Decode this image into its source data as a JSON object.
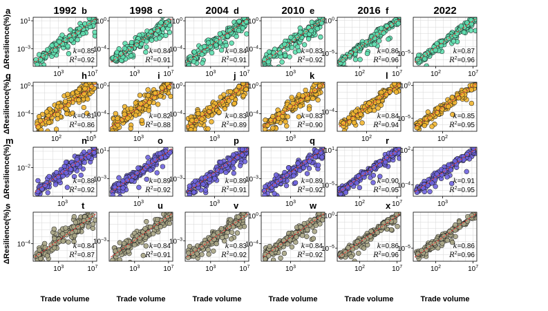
{
  "chart_data": {
    "type": "scatter",
    "x_axis_label": "Trade volume",
    "y_axis_label": "ΔResilience(%)",
    "x_scale": "log",
    "y_scale": "log",
    "fit_line_color": "#e0403a",
    "column_years": [
      "1992",
      "1998",
      "2004",
      "2010",
      "2016",
      "2022"
    ],
    "row_colors": [
      "#5ee0b0",
      "#f2b630",
      "#6f64e0",
      "#a8a585"
    ],
    "panels": [
      {
        "label": "a",
        "year": "1992",
        "k": "0.85",
        "r2": "0.92",
        "x_ticks": [
          "10^3",
          "10^7"
        ],
        "y_ticks": [
          "10^1",
          "10^-3"
        ],
        "log_xlim": [
          0,
          7.5
        ],
        "log_ylim": [
          -5.5,
          1.5
        ]
      },
      {
        "label": "b",
        "year": "1998",
        "k": "0.84",
        "r2": "0.91",
        "x_ticks": [
          "10^3",
          "10^7"
        ],
        "y_ticks": [
          "10^0",
          "10^-4"
        ],
        "log_xlim": [
          0,
          7.5
        ],
        "log_ylim": [
          -6.5,
          0.5
        ]
      },
      {
        "label": "c",
        "year": "2004",
        "k": "0.84",
        "r2": "0.91",
        "x_ticks": [
          "10^3",
          "10^7"
        ],
        "y_ticks": [
          "10^0",
          "10^-4"
        ],
        "log_xlim": [
          0,
          7.5
        ],
        "log_ylim": [
          -6.5,
          0.5
        ]
      },
      {
        "label": "d",
        "year": "2010",
        "k": "0.83",
        "r2": "0.92",
        "x_ticks": [
          "10^3"
        ],
        "y_ticks": [
          "10^0",
          "10^-4"
        ],
        "log_xlim": [
          0,
          6.5
        ],
        "log_ylim": [
          -6.5,
          0.5
        ]
      },
      {
        "label": "e",
        "year": "2016",
        "k": "0.86",
        "r2": "0.96",
        "x_ticks": [
          "10^2",
          "10^7"
        ],
        "y_ticks": [
          "10^0",
          "10^-5"
        ],
        "log_xlim": [
          -1,
          7.5
        ],
        "log_ylim": [
          -7,
          0.5
        ]
      },
      {
        "label": "f",
        "year": "2022",
        "k": "0.87",
        "r2": "0.96",
        "x_ticks": [
          "10^2",
          "10^7"
        ],
        "y_ticks": [
          "10^-5"
        ],
        "log_xlim": [
          -1,
          7.5
        ],
        "log_ylim": [
          -7,
          0.5
        ]
      },
      {
        "label": "g",
        "year": "1992",
        "k": "0.81",
        "r2": "0.86",
        "x_ticks": [
          "10^2",
          "10^5"
        ],
        "y_ticks": [
          "10^0",
          "10^-4"
        ],
        "log_xlim": [
          0,
          5.5
        ],
        "log_ylim": [
          -6.5,
          0.5
        ]
      },
      {
        "label": "h",
        "year": "1998",
        "k": "0.82",
        "r2": "0.88",
        "x_ticks": [
          "10^3"
        ],
        "y_ticks": [
          "10^0",
          "10^-4"
        ],
        "log_xlim": [
          0,
          6.5
        ],
        "log_ylim": [
          -6.5,
          0.5
        ]
      },
      {
        "label": "i",
        "year": "2004",
        "k": "0.83",
        "r2": "0.89",
        "x_ticks": [
          "10^3"
        ],
        "y_ticks": [
          "10^0",
          "10^-4"
        ],
        "log_xlim": [
          0,
          6.5
        ],
        "log_ylim": [
          -6.5,
          0.5
        ]
      },
      {
        "label": "j",
        "year": "2010",
        "k": "0.83",
        "r2": "0.90",
        "x_ticks": [
          "10^3"
        ],
        "y_ticks": [
          "10^0",
          "10^-4"
        ],
        "log_xlim": [
          0,
          6.5
        ],
        "log_ylim": [
          -6.5,
          0.5
        ]
      },
      {
        "label": "k",
        "year": "2016",
        "k": "0.84",
        "r2": "0.94",
        "x_ticks": [
          "10^2"
        ],
        "y_ticks": [
          "10^-4"
        ],
        "log_xlim": [
          -1,
          5.5
        ],
        "log_ylim": [
          -7,
          0.5
        ]
      },
      {
        "label": "l",
        "year": "2022",
        "k": "0.85",
        "r2": "0.95",
        "x_ticks": [
          "10^2"
        ],
        "y_ticks": [
          "10^0",
          "10^-5"
        ],
        "log_xlim": [
          -1,
          5.5
        ],
        "log_ylim": [
          -7,
          0.5
        ]
      },
      {
        "label": "m",
        "year": "1992",
        "k": "0.88",
        "r2": "0.92",
        "x_ticks": [
          "10^3"
        ],
        "y_ticks": [
          "10^-2"
        ],
        "log_xlim": [
          0,
          6.5
        ],
        "log_ylim": [
          -5.5,
          0.5
        ]
      },
      {
        "label": "n",
        "year": "1998",
        "k": "0.89",
        "r2": "0.92",
        "x_ticks": [
          "10^3"
        ],
        "y_ticks": [
          "10^1",
          "10^-3"
        ],
        "log_xlim": [
          0,
          6.5
        ],
        "log_ylim": [
          -5.5,
          1.5
        ]
      },
      {
        "label": "o",
        "year": "2004",
        "k": "0.89",
        "r2": "0.91",
        "x_ticks": [
          "10^3"
        ],
        "y_ticks": [
          "10^-3"
        ],
        "log_xlim": [
          0,
          6.5
        ],
        "log_ylim": [
          -5.5,
          1.5
        ]
      },
      {
        "label": "p",
        "year": "2010",
        "k": "0.89",
        "r2": "0.92",
        "x_ticks": [
          "10^3"
        ],
        "y_ticks": [
          "10^-3"
        ],
        "log_xlim": [
          0,
          6.5
        ],
        "log_ylim": [
          -5.5,
          1.5
        ]
      },
      {
        "label": "q",
        "year": "2016",
        "k": "0.90",
        "r2": "0.95",
        "x_ticks": [
          "10^2",
          "10^7"
        ],
        "y_ticks": [
          "10^1",
          "10^-5"
        ],
        "log_xlim": [
          -1,
          7.5
        ],
        "log_ylim": [
          -7,
          1.5
        ]
      },
      {
        "label": "r",
        "year": "2022",
        "k": "0.91",
        "r2": "0.95",
        "x_ticks": [
          "10^3"
        ],
        "y_ticks": [
          "10^2",
          "10^-4"
        ],
        "log_xlim": [
          0,
          6.5
        ],
        "log_ylim": [
          -6,
          2.5
        ]
      },
      {
        "label": "s",
        "year": "1992",
        "k": "0.84",
        "r2": "0.87",
        "x_ticks": [
          "10^3",
          "10^7"
        ],
        "y_ticks": [
          "10^-4"
        ],
        "log_xlim": [
          0,
          7.5
        ],
        "log_ylim": [
          -6.5,
          0.5
        ]
      },
      {
        "label": "t",
        "year": "1998",
        "k": "0.84",
        "r2": "0.91",
        "x_ticks": [
          "10^3",
          "10^7"
        ],
        "y_ticks": [
          "10^-3"
        ],
        "log_xlim": [
          0,
          7.5
        ],
        "log_ylim": [
          -5.5,
          0.5
        ]
      },
      {
        "label": "u",
        "year": "2004",
        "k": "0.83",
        "r2": "0.92",
        "x_ticks": [
          "10^3",
          "10^7"
        ],
        "y_ticks": [
          "10^-3"
        ],
        "log_xlim": [
          0,
          7.5
        ],
        "log_ylim": [
          -5.5,
          0.5
        ]
      },
      {
        "label": "v",
        "year": "2010",
        "k": "0.84",
        "r2": "0.92",
        "x_ticks": [
          "10^3"
        ],
        "y_ticks": [
          "10^0",
          "10^-4"
        ],
        "log_xlim": [
          0,
          6.5
        ],
        "log_ylim": [
          -6.5,
          0.5
        ]
      },
      {
        "label": "w",
        "year": "2016",
        "k": "0.86",
        "r2": "0.96",
        "x_ticks": [
          "10^2",
          "10^7"
        ],
        "y_ticks": [
          "10^0",
          "10^-5"
        ],
        "log_xlim": [
          -1,
          7.5
        ],
        "log_ylim": [
          -7,
          0.5
        ]
      },
      {
        "label": "x",
        "year": "2022",
        "k": "0.86",
        "r2": "0.96",
        "x_ticks": [
          "10^2",
          "10^7"
        ],
        "y_ticks": [
          "10^-5"
        ],
        "log_xlim": [
          -1,
          7.5
        ],
        "log_ylim": [
          -7,
          0.5
        ]
      }
    ]
  }
}
